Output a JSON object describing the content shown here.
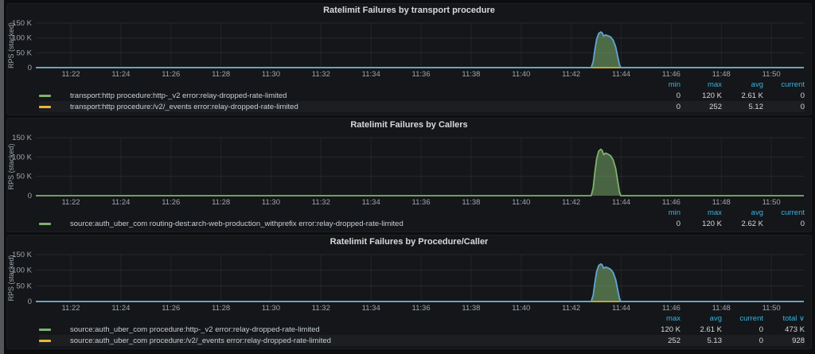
{
  "dashboard": {
    "background": "#0c0d0f",
    "panel_background": "#141619",
    "left_strip_color": "#54565a",
    "stat_header_color": "#33b5e5",
    "series_green": "#7eb26d",
    "series_yellow": "#eab839",
    "chart_line_blue": "#61a5d4"
  },
  "panels": [
    {
      "title": "Ratelimit Failures by transport procedure",
      "stat_columns": [
        "min",
        "max",
        "avg",
        "current"
      ],
      "sorted_column": "",
      "legend": [
        {
          "color": "#7eb26d",
          "label": "transport:http procedure:http-_v2 error:relay-dropped-rate-limited",
          "stats": [
            "0",
            "120 K",
            "2.61 K",
            "0"
          ]
        },
        {
          "color": "#eab839",
          "label": "transport:http procedure:/v2/_events error:relay-dropped-rate-limited",
          "stats": [
            "0",
            "252",
            "5.12",
            "0"
          ]
        }
      ],
      "chart_data": {
        "type": "area",
        "title": "Ratelimit Failures by transport procedure",
        "xlabel": "",
        "ylabel": "RPS (stacked)",
        "x_range": [
          20.6,
          51.3
        ],
        "y_range": [
          0,
          150000
        ],
        "grid": true,
        "x_ticks": [
          {
            "v": 22,
            "label": "11:22"
          },
          {
            "v": 24,
            "label": "11:24"
          },
          {
            "v": 26,
            "label": "11:26"
          },
          {
            "v": 28,
            "label": "11:28"
          },
          {
            "v": 30,
            "label": "11:30"
          },
          {
            "v": 32,
            "label": "11:32"
          },
          {
            "v": 34,
            "label": "11:34"
          },
          {
            "v": 36,
            "label": "11:36"
          },
          {
            "v": 38,
            "label": "11:38"
          },
          {
            "v": 40,
            "label": "11:40"
          },
          {
            "v": 42,
            "label": "11:42"
          },
          {
            "v": 44,
            "label": "11:44"
          },
          {
            "v": 46,
            "label": "11:46"
          },
          {
            "v": 48,
            "label": "11:48"
          },
          {
            "v": 50,
            "label": "11:50"
          }
        ],
        "y_ticks": [
          {
            "v": 0,
            "label": "0"
          },
          {
            "v": 50000,
            "label": "50 K"
          },
          {
            "v": 100000,
            "label": "100 K"
          },
          {
            "v": 150000,
            "label": "150 K"
          }
        ],
        "series": [
          {
            "name": "transport:http procedure:/v2/_events error:relay-dropped-rate-limited",
            "line_color": "#eab839",
            "fill_color": "",
            "points": [
              [
                20.6,
                0
              ],
              [
                51.3,
                0
              ]
            ]
          },
          {
            "name": "transport:http procedure:http-_v2 error:relay-dropped-rate-limited",
            "line_color": "#61a5d4",
            "fill_color": "rgba(126,178,109,0.55)",
            "points": [
              [
                20.6,
                0
              ],
              [
                42.8,
                0
              ],
              [
                42.88,
                20000
              ],
              [
                42.95,
                62000
              ],
              [
                43.02,
                96000
              ],
              [
                43.1,
                115000
              ],
              [
                43.18,
                120000
              ],
              [
                43.24,
                117000
              ],
              [
                43.3,
                106000
              ],
              [
                43.38,
                110000
              ],
              [
                43.48,
                107000
              ],
              [
                43.58,
                103000
              ],
              [
                43.68,
                92000
              ],
              [
                43.78,
                70000
              ],
              [
                43.86,
                38000
              ],
              [
                43.93,
                10000
              ],
              [
                43.98,
                0
              ],
              [
                51.3,
                0
              ]
            ]
          }
        ]
      }
    },
    {
      "title": "Ratelimit Failures by Callers",
      "stat_columns": [
        "min",
        "max",
        "avg",
        "current"
      ],
      "sorted_column": "",
      "legend": [
        {
          "color": "#7eb26d",
          "label": "source:auth_uber_com routing-dest:arch-web-production_withprefix error:relay-dropped-rate-limited",
          "stats": [
            "0",
            "120 K",
            "2.62 K",
            "0"
          ]
        }
      ],
      "chart_data": {
        "type": "area",
        "title": "Ratelimit Failures by Callers",
        "xlabel": "",
        "ylabel": "RPS (stacked)",
        "x_range": [
          20.6,
          51.3
        ],
        "y_range": [
          0,
          150000
        ],
        "grid": true,
        "x_ticks": [
          {
            "v": 22,
            "label": "11:22"
          },
          {
            "v": 24,
            "label": "11:24"
          },
          {
            "v": 26,
            "label": "11:26"
          },
          {
            "v": 28,
            "label": "11:28"
          },
          {
            "v": 30,
            "label": "11:30"
          },
          {
            "v": 32,
            "label": "11:32"
          },
          {
            "v": 34,
            "label": "11:34"
          },
          {
            "v": 36,
            "label": "11:36"
          },
          {
            "v": 38,
            "label": "11:38"
          },
          {
            "v": 40,
            "label": "11:40"
          },
          {
            "v": 42,
            "label": "11:42"
          },
          {
            "v": 44,
            "label": "11:44"
          },
          {
            "v": 46,
            "label": "11:46"
          },
          {
            "v": 48,
            "label": "11:48"
          },
          {
            "v": 50,
            "label": "11:50"
          }
        ],
        "y_ticks": [
          {
            "v": 0,
            "label": "0"
          },
          {
            "v": 50000,
            "label": "50 K"
          },
          {
            "v": 100000,
            "label": "100 K"
          },
          {
            "v": 150000,
            "label": "150 K"
          }
        ],
        "series": [
          {
            "name": "source:auth_uber_com routing-dest:arch-web-production_withprefix error:relay-dropped-rate-limited",
            "line_color": "#7eb26d",
            "fill_color": "rgba(126,178,109,0.5)",
            "points": [
              [
                20.6,
                0
              ],
              [
                42.8,
                0
              ],
              [
                42.88,
                20000
              ],
              [
                42.95,
                62000
              ],
              [
                43.02,
                96000
              ],
              [
                43.1,
                115000
              ],
              [
                43.18,
                120000
              ],
              [
                43.24,
                117000
              ],
              [
                43.3,
                106000
              ],
              [
                43.38,
                110000
              ],
              [
                43.48,
                107000
              ],
              [
                43.58,
                103000
              ],
              [
                43.68,
                92000
              ],
              [
                43.78,
                70000
              ],
              [
                43.86,
                38000
              ],
              [
                43.93,
                10000
              ],
              [
                43.98,
                0
              ],
              [
                51.3,
                0
              ]
            ]
          }
        ]
      }
    },
    {
      "title": "Ratelimit Failures by Procedure/Caller",
      "stat_columns": [
        "max",
        "avg",
        "current",
        "total"
      ],
      "sorted_column": "total",
      "legend": [
        {
          "color": "#7eb26d",
          "label": "source:auth_uber_com procedure:http-_v2 error:relay-dropped-rate-limited",
          "stats": [
            "120 K",
            "2.61 K",
            "0",
            "473 K"
          ]
        },
        {
          "color": "#eab839",
          "label": "source:auth_uber_com procedure:/v2/_events error:relay-dropped-rate-limited",
          "stats": [
            "252",
            "5.13",
            "0",
            "928"
          ]
        }
      ],
      "chart_data": {
        "type": "area",
        "title": "Ratelimit Failures by Procedure/Caller",
        "xlabel": "",
        "ylabel": "RPS (stacked)",
        "x_range": [
          20.6,
          51.3
        ],
        "y_range": [
          0,
          150000
        ],
        "grid": true,
        "x_ticks": [
          {
            "v": 22,
            "label": "11:22"
          },
          {
            "v": 24,
            "label": "11:24"
          },
          {
            "v": 26,
            "label": "11:26"
          },
          {
            "v": 28,
            "label": "11:28"
          },
          {
            "v": 30,
            "label": "11:30"
          },
          {
            "v": 32,
            "label": "11:32"
          },
          {
            "v": 34,
            "label": "11:34"
          },
          {
            "v": 36,
            "label": "11:36"
          },
          {
            "v": 38,
            "label": "11:38"
          },
          {
            "v": 40,
            "label": "11:40"
          },
          {
            "v": 42,
            "label": "11:42"
          },
          {
            "v": 44,
            "label": "11:44"
          },
          {
            "v": 46,
            "label": "11:46"
          },
          {
            "v": 48,
            "label": "11:48"
          },
          {
            "v": 50,
            "label": "11:50"
          }
        ],
        "y_ticks": [
          {
            "v": 0,
            "label": "0"
          },
          {
            "v": 50000,
            "label": "50 K"
          },
          {
            "v": 100000,
            "label": "100 K"
          },
          {
            "v": 150000,
            "label": "150 K"
          }
        ],
        "series": [
          {
            "name": "source:auth_uber_com procedure:/v2/_events error:relay-dropped-rate-limited",
            "line_color": "#eab839",
            "fill_color": "",
            "points": [
              [
                20.6,
                0
              ],
              [
                51.3,
                0
              ]
            ]
          },
          {
            "name": "source:auth_uber_com procedure:http-_v2 error:relay-dropped-rate-limited",
            "line_color": "#61a5d4",
            "fill_color": "rgba(126,178,109,0.55)",
            "points": [
              [
                20.6,
                0
              ],
              [
                42.8,
                0
              ],
              [
                42.88,
                20000
              ],
              [
                42.95,
                62000
              ],
              [
                43.02,
                96000
              ],
              [
                43.1,
                115000
              ],
              [
                43.18,
                120000
              ],
              [
                43.24,
                117000
              ],
              [
                43.3,
                106000
              ],
              [
                43.38,
                110000
              ],
              [
                43.48,
                107000
              ],
              [
                43.58,
                103000
              ],
              [
                43.68,
                92000
              ],
              [
                43.78,
                70000
              ],
              [
                43.86,
                38000
              ],
              [
                43.93,
                10000
              ],
              [
                43.98,
                0
              ],
              [
                51.3,
                0
              ]
            ]
          }
        ]
      }
    }
  ]
}
